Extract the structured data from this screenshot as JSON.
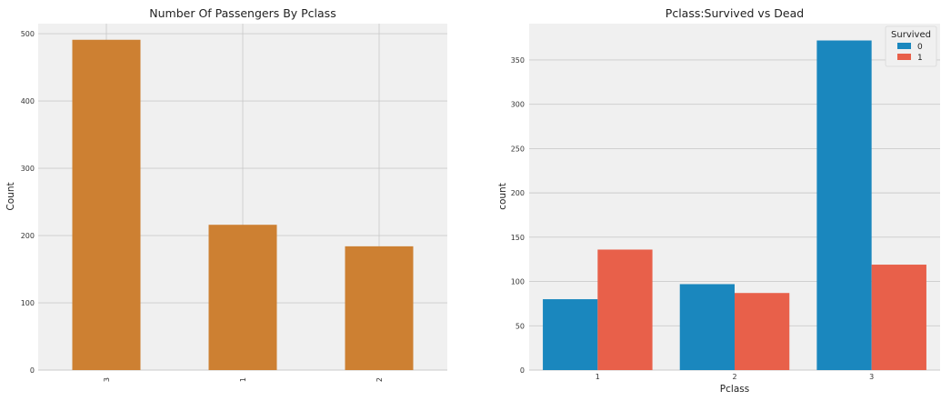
{
  "chart_data": [
    {
      "type": "bar",
      "title": "Number Of Passengers By Pclass",
      "xlabel": "",
      "ylabel": "Count",
      "categories": [
        "3",
        "1",
        "2"
      ],
      "values": [
        491,
        216,
        184
      ],
      "ylim": [
        0,
        515
      ],
      "yticks": [
        0,
        100,
        200,
        300,
        400,
        500
      ],
      "grid": true,
      "colors": {
        "bar": "#cd8032",
        "background": "#f0f0f0",
        "grid": "#cbcbcb"
      }
    },
    {
      "type": "bar",
      "title": "Pclass:Survived vs Dead",
      "xlabel": "Pclass",
      "ylabel": "count",
      "categories": [
        "1",
        "2",
        "3"
      ],
      "legend_title": "Survived",
      "legend_position": "top-right",
      "series": [
        {
          "name": "0",
          "values": [
            80,
            97,
            372
          ],
          "color": "#1a87be"
        },
        {
          "name": "1",
          "values": [
            136,
            87,
            119
          ],
          "color": "#e8604a"
        }
      ],
      "ylim": [
        0,
        391
      ],
      "yticks": [
        0,
        50,
        100,
        150,
        200,
        250,
        300,
        350
      ],
      "grid": true,
      "colors": {
        "background": "#f0f0f0",
        "grid": "#cbcbcb"
      }
    }
  ]
}
